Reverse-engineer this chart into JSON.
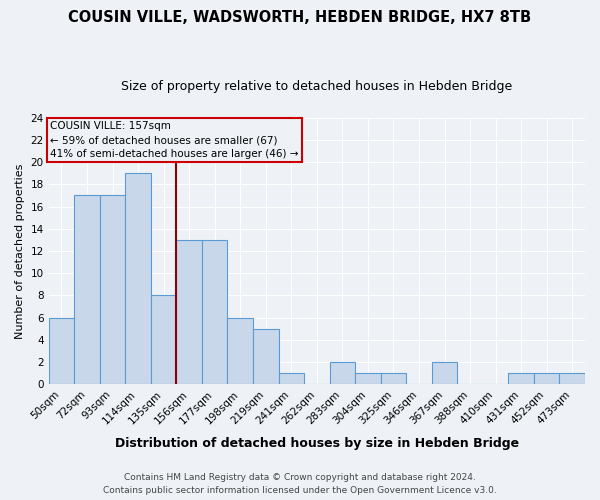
{
  "title": "COUSIN VILLE, WADSWORTH, HEBDEN BRIDGE, HX7 8TB",
  "subtitle": "Size of property relative to detached houses in Hebden Bridge",
  "xlabel": "Distribution of detached houses by size in Hebden Bridge",
  "ylabel": "Number of detached properties",
  "bin_labels": [
    "50sqm",
    "72sqm",
    "93sqm",
    "114sqm",
    "135sqm",
    "156sqm",
    "177sqm",
    "198sqm",
    "219sqm",
    "241sqm",
    "262sqm",
    "283sqm",
    "304sqm",
    "325sqm",
    "346sqm",
    "367sqm",
    "388sqm",
    "410sqm",
    "431sqm",
    "452sqm",
    "473sqm"
  ],
  "bar_heights": [
    6,
    17,
    17,
    19,
    8,
    13,
    13,
    6,
    5,
    1,
    0,
    2,
    1,
    1,
    0,
    2,
    0,
    0,
    1,
    1,
    1
  ],
  "bar_color": "#c8d8ea",
  "bar_edge_color": "#5b9bd5",
  "vline_x_index": 5,
  "vline_color": "#8b0000",
  "annotation_title": "COUSIN VILLE: 157sqm",
  "annotation_line1": "← 59% of detached houses are smaller (67)",
  "annotation_line2": "41% of semi-detached houses are larger (46) →",
  "annotation_box_color": "#cc0000",
  "ylim": [
    0,
    24
  ],
  "yticks": [
    0,
    2,
    4,
    6,
    8,
    10,
    12,
    14,
    16,
    18,
    20,
    22,
    24
  ],
  "footer_line1": "Contains HM Land Registry data © Crown copyright and database right 2024.",
  "footer_line2": "Contains public sector information licensed under the Open Government Licence v3.0.",
  "title_fontsize": 10.5,
  "subtitle_fontsize": 9,
  "xlabel_fontsize": 9,
  "ylabel_fontsize": 8,
  "tick_fontsize": 7.5,
  "footer_fontsize": 6.5,
  "background_color": "#eef2f7",
  "grid_color": "#ffffff"
}
